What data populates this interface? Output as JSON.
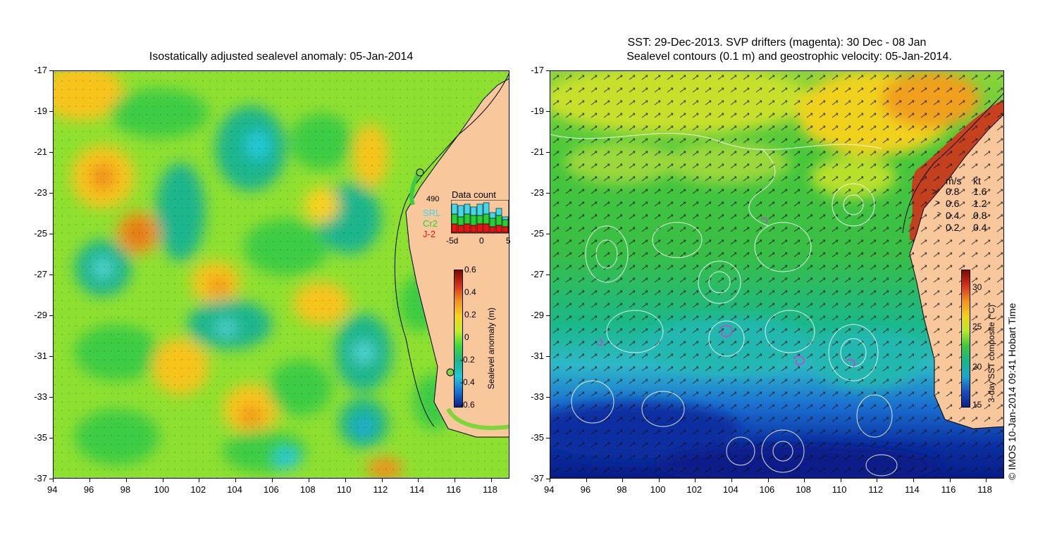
{
  "left_panel": {
    "title": "Isostatically adjusted sealevel anomaly: 05-Jan-2014",
    "colorbar": {
      "label": "Sealevel anomaly (m)",
      "ticks": [
        "0.6",
        "0.4",
        "0.2",
        "0",
        "-0.2",
        "-0.4",
        "-0.6"
      ],
      "colors": [
        "#7a0a00",
        "#d2321c",
        "#f0901c",
        "#f7d21a",
        "#c2ee24",
        "#3ed83a",
        "#1ab58c",
        "#21c8d8",
        "#1a73d6",
        "#0a1f8c"
      ]
    },
    "data_count": {
      "title": "Data count",
      "count": "490",
      "missions": [
        {
          "name": "SRL",
          "color": "#3fd8ec"
        },
        {
          "name": "Cr2",
          "color": "#1fd433"
        },
        {
          "name": "J-2",
          "color": "#ee1010"
        }
      ],
      "axis_ticks": [
        "-5d",
        "0",
        "5"
      ],
      "bars": [
        {
          "j2": 6,
          "cr2": 7,
          "srl": 7
        },
        {
          "j2": 5,
          "cr2": 6,
          "srl": 8
        },
        {
          "j2": 6,
          "cr2": 7,
          "srl": 7
        },
        {
          "j2": 5,
          "cr2": 7,
          "srl": 6
        },
        {
          "j2": 6,
          "cr2": 6,
          "srl": 8
        },
        {
          "j2": 6,
          "cr2": 7,
          "srl": 8
        },
        {
          "j2": 4,
          "cr2": 6,
          "srl": 4
        },
        {
          "j2": 5,
          "cr2": 7,
          "srl": 5
        },
        {
          "j2": 4,
          "cr2": 5,
          "srl": 2
        }
      ]
    }
  },
  "right_panel": {
    "title_line1": "SST: 29-Dec-2013. SVP drifters (magenta): 30 Dec - 08 Jan",
    "title_line2": "Sealevel contours (0.1 m) and geostrophic velocity: 05-Jan-2014.",
    "velocity_legend": {
      "header_ms": "m/s",
      "header_kt": "kt",
      "rows": [
        {
          "ms": "0.8",
          "kt": "1.6"
        },
        {
          "ms": "0.6",
          "kt": "1.2"
        },
        {
          "ms": "0.4",
          "kt": "0.8"
        },
        {
          "ms": "0.2",
          "kt": "0.4"
        }
      ]
    },
    "colorbar": {
      "label": "3-day SST composite (°C)",
      "ticks": [
        "30",
        "25",
        "20",
        "15"
      ],
      "colors": [
        "#7a0a00",
        "#d2321c",
        "#f0901c",
        "#f0d21a",
        "#b8e82a",
        "#3ec83a",
        "#16b68e",
        "#1aa6d0",
        "#1a4fc2",
        "#0a1f8c"
      ]
    }
  },
  "axes": {
    "lon_ticks": [
      "94",
      "96",
      "98",
      "100",
      "102",
      "104",
      "106",
      "108",
      "110",
      "112",
      "114",
      "116",
      "118"
    ],
    "lat_ticks": [
      "-17",
      "-19",
      "-21",
      "-23",
      "-25",
      "-27",
      "-29",
      "-31",
      "-33",
      "-35",
      "-37"
    ]
  },
  "copyright": "© IMOS 10-Jan-2014 09:41 Hobart Time",
  "colors": {
    "land": "#f9c79c",
    "ocean_base_left": "#7fd63a",
    "ocean_base_right": "#3fbf3a",
    "contour": "#ffffff",
    "drifter": "#d040d0"
  }
}
